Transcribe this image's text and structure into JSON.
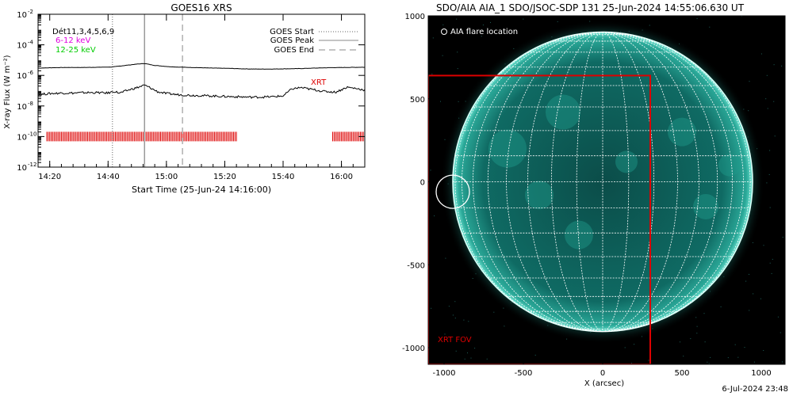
{
  "footer": {
    "generated": "6-Jul-2024 23:48"
  },
  "chart_data": [
    {
      "type": "line",
      "title": "GOES16 XRS",
      "xlabel": "Start Time (25-Jun-24 14:16:00)",
      "ylabel": "X-ray Flux (W m⁻²)",
      "y_scale": "log",
      "ylim": [
        1e-12,
        0.01
      ],
      "xlim_minutes": [
        0,
        112
      ],
      "x_tick_labels": [
        "14:20",
        "14:40",
        "15:00",
        "15:20",
        "15:40",
        "16:00"
      ],
      "x_tick_minutes": [
        4,
        24,
        44,
        64,
        84,
        104
      ],
      "y_tick_labels": [
        {
          "base": "10",
          "exp": "-12"
        },
        {
          "base": "10",
          "exp": "-10"
        },
        {
          "base": "10",
          "exp": "-8"
        },
        {
          "base": "10",
          "exp": "-6"
        },
        {
          "base": "10",
          "exp": "-4"
        },
        {
          "base": "10",
          "exp": "-2"
        }
      ],
      "y_tick_exponents": [
        -12,
        -10,
        -8,
        -6,
        -4,
        -2
      ],
      "channels_label": "Dét11,3,4,5,6,9",
      "energy_labels": [
        {
          "text": "6-12 keV",
          "color": "#e000e0"
        },
        {
          "text": "12-25 keV",
          "color": "#00cc00"
        }
      ],
      "legend": [
        "GOES Start",
        "GOES Peak",
        "GOES End"
      ],
      "event_lines_minutes": {
        "start": 25.5,
        "peak": 36.5,
        "end": 49.5
      },
      "xrt_label": "XRT",
      "xrt_flux": 1e-10,
      "xrt_segments_minutes": [
        [
          3,
          68
        ],
        [
          101,
          112
        ]
      ],
      "series": [
        {
          "name": "",
          "color": "#000000",
          "x": [
            0,
            5,
            10,
            15,
            20,
            25,
            30,
            34,
            36.5,
            40,
            45,
            50,
            55,
            60,
            65,
            70,
            75,
            80,
            85,
            90,
            95,
            100,
            105,
            110,
            112
          ],
          "y": [
            3e-06,
            3.2e-06,
            3.3e-06,
            3.3e-06,
            3.4e-06,
            3.5e-06,
            4.5e-06,
            5.5e-06,
            6e-06,
            4.5e-06,
            3.7e-06,
            3.4e-06,
            3.2e-06,
            3e-06,
            2.9e-06,
            2.7e-06,
            2.6e-06,
            2.6e-06,
            2.7e-06,
            2.8e-06,
            3e-06,
            3.2e-06,
            3.3e-06,
            3.4e-06,
            3.4e-06
          ]
        },
        {
          "name": "",
          "color": "#000000",
          "x": [
            0,
            4,
            8,
            12,
            16,
            20,
            24,
            26,
            28,
            31,
            34,
            36.5,
            38,
            41,
            44,
            48,
            52,
            56,
            60,
            64,
            68,
            72,
            76,
            80,
            84,
            87,
            90,
            94,
            98,
            102,
            106,
            110,
            112
          ],
          "y": [
            5.5e-08,
            6.5e-08,
            7e-08,
            7e-08,
            7.5e-08,
            7.5e-08,
            7e-08,
            9e-08,
            7e-08,
            1.1e-07,
            1.6e-07,
            2.3e-07,
            1.7e-07,
            8.5e-08,
            6.5e-08,
            5.5e-08,
            5e-08,
            4.8e-08,
            4.5e-08,
            4.2e-08,
            4e-08,
            3.8e-08,
            3.8e-08,
            4e-08,
            4.5e-08,
            1.3e-07,
            1.6e-07,
            1.2e-07,
            9e-08,
            8e-08,
            1.7e-07,
            1.3e-07,
            1.1e-07
          ]
        }
      ]
    },
    {
      "type": "image",
      "title": "SDO/AIA AIA_1 SDO/JSOC-SDP 131 25-Jun-2024 14:55:06.630 UT",
      "xlabel": "X (arcsec)",
      "ylabel": "",
      "xlim": [
        -1100,
        1150
      ],
      "ylim": [
        -1100,
        1000
      ],
      "x_tick_labels": [
        "-1000",
        "-500",
        "0",
        "500",
        "1000"
      ],
      "x_ticks": [
        -1000,
        -500,
        0,
        500,
        1000
      ],
      "y_tick_labels": [
        "1000",
        "500",
        "0",
        "-500",
        "-1000"
      ],
      "y_ticks": [
        1000,
        500,
        0,
        -500,
        -1000
      ],
      "solar_radius": 945,
      "grid_step_deg": 10,
      "flare_location_label": "AIA flare location",
      "flare_location": {
        "x": -945,
        "y": -60,
        "radius": 105
      },
      "xrt_fov_label": "XRT FOV",
      "xrt_fov": {
        "x_min": -1100,
        "x_max": 300,
        "y_min": -1100,
        "y_max": 640
      },
      "colors": {
        "disk": "#0d5f5a",
        "limb": "#39c9b6",
        "grid": "#ffffff",
        "fov": "#dd0000"
      }
    }
  ]
}
